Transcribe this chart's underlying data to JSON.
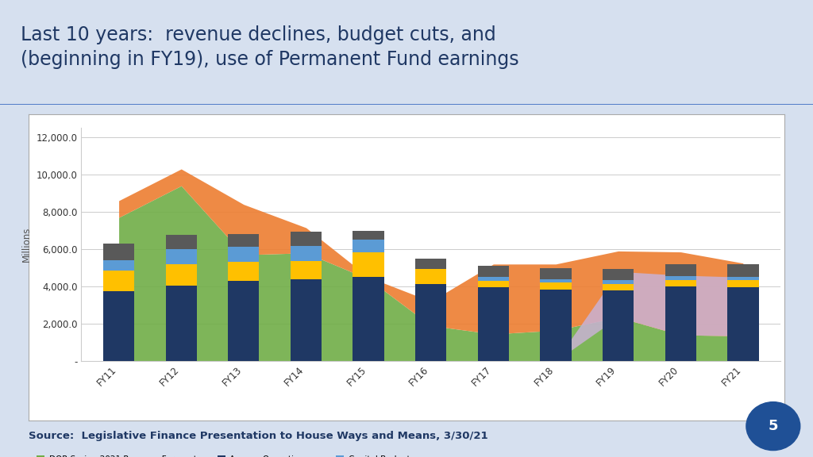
{
  "title": "Last 10 years:  revenue declines, budget cuts, and\n(beginning in FY19), use of Permanent Fund earnings",
  "subtitle": "Source:  Legislative Finance Presentation to House Ways and Means, 3/30/21",
  "ylabel": "Millions",
  "years": [
    "FY11",
    "FY12",
    "FY13",
    "FY14",
    "FY15",
    "FY16",
    "FY17",
    "FY18",
    "FY19",
    "FY20",
    "FY21"
  ],
  "ylim": [
    0,
    12500
  ],
  "yticks": [
    0,
    2000,
    4000,
    6000,
    8000,
    10000,
    12000
  ],
  "ytick_labels": [
    "-",
    "2,000.0",
    "4,000.0",
    "6,000.0",
    "8,000.0",
    "10,000.0",
    "12,000.0"
  ],
  "agency_operations": [
    3750,
    4050,
    4280,
    4380,
    4500,
    4150,
    3950,
    3850,
    3800,
    4000,
    3980
  ],
  "statewide_operating": [
    1100,
    1150,
    1050,
    1000,
    1350,
    800,
    350,
    350,
    350,
    350,
    350
  ],
  "capital_budget": [
    550,
    800,
    800,
    800,
    650,
    0,
    200,
    200,
    200,
    200,
    200
  ],
  "perm_fund_dividends": [
    900,
    750,
    700,
    750,
    500,
    550,
    600,
    600,
    600,
    650,
    650
  ],
  "dor_forecast": [
    7700,
    9400,
    5700,
    5800,
    4400,
    1900,
    1450,
    1650,
    2350,
    1400,
    1350
  ],
  "pfd_era_top": [
    8600,
    10300,
    8400,
    7150,
    4500,
    3200,
    5200,
    5200,
    5900,
    5850,
    5250
  ],
  "pomv_top": [
    0,
    0,
    0,
    0,
    0,
    0,
    0,
    0,
    4800,
    4600,
    4500
  ],
  "color_agency_ops": "#1f3864",
  "color_statewide_op": "#ffc000",
  "color_capital_budget": "#5b9bd5",
  "color_perm_div": "#595959",
  "color_dor_forecast": "#70ad47",
  "color_pfd_era": "#ed7d31",
  "color_pomv": "#c9b2d4",
  "page_bg": "#d6e0ef",
  "chart_bg": "#ffffff",
  "header_bg": "#d6e0ef",
  "title_color": "#1f3864",
  "page_num_bg": "#1f5096"
}
